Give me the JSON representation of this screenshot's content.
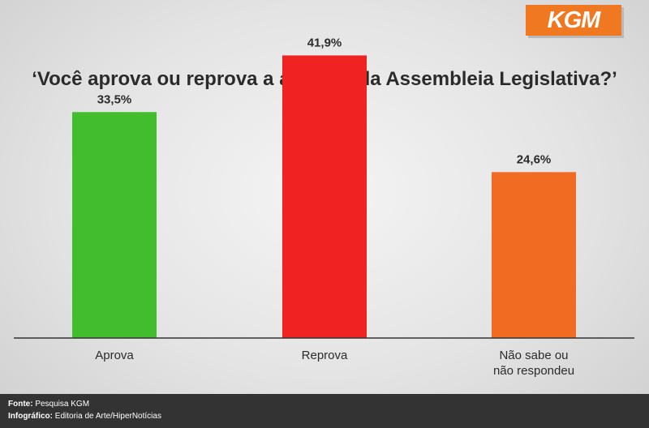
{
  "brand": {
    "logo_text": "KGM",
    "logo_color": "#f07820"
  },
  "chart_data": {
    "type": "bar",
    "title": "‘Você aprova ou reprova a atuação da Assembleia Legislativa?’",
    "categories": [
      "Aprova",
      "Reprova",
      "Não sabe ou\nnão respondeu"
    ],
    "values": [
      33.5,
      41.9,
      24.6
    ],
    "value_labels": [
      "33,5%",
      "41,9%",
      "24,6%"
    ],
    "colors": [
      "#41bd2d",
      "#f02222",
      "#f26b22"
    ],
    "ylim": [
      0,
      50
    ],
    "grid": false,
    "legend": "none"
  },
  "footer": {
    "source_label": "Fonte:",
    "source_value": "Pesquisa KGM",
    "infographic_label": "Infográfico:",
    "infographic_value": "Editoria de Arte/HiperNotícias"
  }
}
